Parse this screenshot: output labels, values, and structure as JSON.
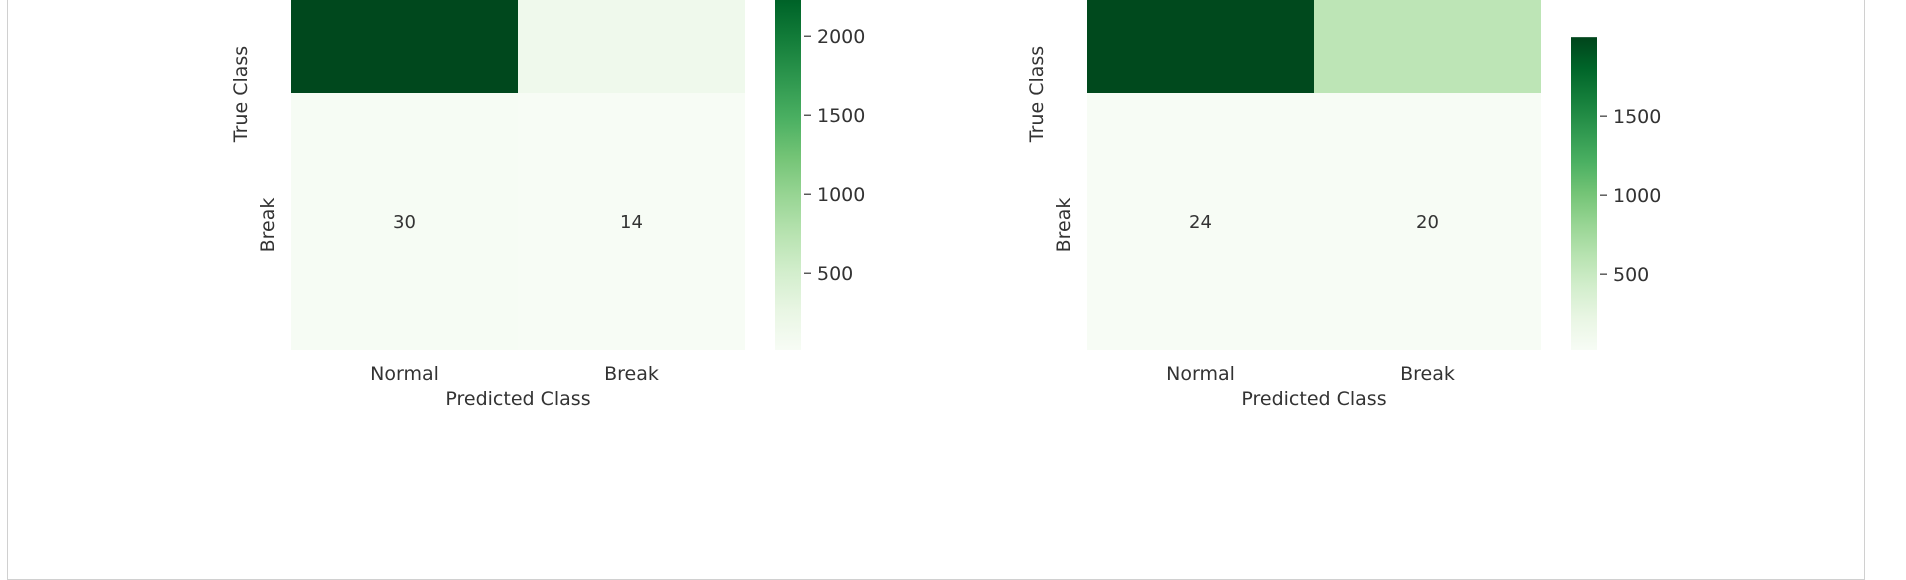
{
  "chart_data": [
    {
      "type": "heatmap",
      "xlabel": "Predicted Class",
      "ylabel": "True Class",
      "x_categories": [
        "Normal",
        "Break"
      ],
      "y_categories_visible": [
        "Break"
      ],
      "cell_labels": [
        {
          "row": "Break",
          "col": "Normal",
          "value": 30
        },
        {
          "row": "Break",
          "col": "Break",
          "value": 14
        }
      ],
      "colormap": "Greens",
      "colorbar": {
        "ticks": [
          500,
          1000,
          1500,
          2000
        ],
        "range": [
          14,
          2450
        ]
      },
      "cells": [
        {
          "row": 0,
          "col": 0,
          "value": 2420
        },
        {
          "row": 0,
          "col": 1,
          "value": 150
        },
        {
          "row": 1,
          "col": 0,
          "value": 30
        },
        {
          "row": 1,
          "col": 1,
          "value": 14
        }
      ]
    },
    {
      "type": "heatmap",
      "xlabel": "Predicted Class",
      "ylabel": "True Class",
      "x_categories": [
        "Normal",
        "Break"
      ],
      "y_categories_visible": [
        "Break"
      ],
      "cell_labels": [
        {
          "row": "Break",
          "col": "Normal",
          "value": 24
        },
        {
          "row": "Break",
          "col": "Break",
          "value": 20
        }
      ],
      "colormap": "Greens",
      "colorbar": {
        "ticks": [
          500,
          1000,
          1500
        ],
        "range": [
          20,
          2000
        ]
      },
      "cells": [
        {
          "row": 0,
          "col": 0,
          "value": 1970
        },
        {
          "row": 0,
          "col": 1,
          "value": 580
        },
        {
          "row": 1,
          "col": 0,
          "value": 24
        },
        {
          "row": 1,
          "col": 1,
          "value": 20
        }
      ]
    }
  ]
}
